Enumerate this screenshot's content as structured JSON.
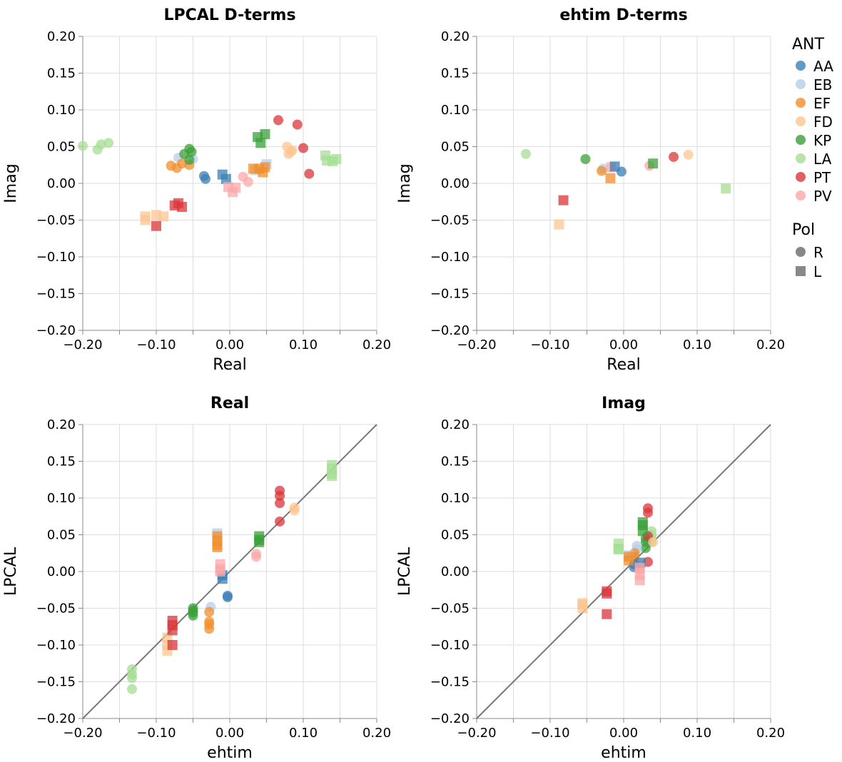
{
  "colors": {
    "AA": "#3b7fb6",
    "EB": "#b7cde8",
    "EF": "#f28e2b",
    "FD": "#fdc690",
    "KP": "#3aa03a",
    "LA": "#a6dd93",
    "PT": "#d9363b",
    "PV": "#fba8aa"
  },
  "legend": {
    "ant_title": "ANT",
    "ant_items": [
      "AA",
      "EB",
      "EF",
      "FD",
      "KP",
      "LA",
      "PT",
      "PV"
    ],
    "pol_title": "Pol",
    "pol_items": [
      {
        "label": "R",
        "shape": "circle"
      },
      {
        "label": "L",
        "shape": "square"
      }
    ]
  },
  "chart_data": [
    {
      "type": "scatter",
      "title": "LPCAL D-terms",
      "xlabel": "Real",
      "ylabel": "Imag",
      "xlim": [
        -0.2,
        0.2
      ],
      "ylim": [
        -0.2,
        0.2
      ],
      "xticks": [
        "−0.20",
        "−0.10",
        "0.00",
        "0.10",
        "0.20"
      ],
      "yticks": [
        "0.20",
        "0.15",
        "0.10",
        "0.05",
        "0.00",
        "−0.05",
        "−0.10",
        "−0.15",
        "−0.20"
      ],
      "grid": true,
      "diagonal": false,
      "points": [
        {
          "ant": "LA",
          "pol": "R",
          "x": -0.165,
          "y": 0.055
        },
        {
          "ant": "LA",
          "pol": "R",
          "x": -0.175,
          "y": 0.053
        },
        {
          "ant": "LA",
          "pol": "R",
          "x": -0.18,
          "y": 0.046
        },
        {
          "ant": "LA",
          "pol": "R",
          "x": -0.2,
          "y": 0.051
        },
        {
          "ant": "EB",
          "pol": "R",
          "x": -0.07,
          "y": 0.035
        },
        {
          "ant": "EB",
          "pol": "R",
          "x": -0.05,
          "y": 0.033
        },
        {
          "ant": "EF",
          "pol": "R",
          "x": -0.08,
          "y": 0.024
        },
        {
          "ant": "EF",
          "pol": "R",
          "x": -0.072,
          "y": 0.021
        },
        {
          "ant": "EF",
          "pol": "R",
          "x": -0.065,
          "y": 0.027
        },
        {
          "ant": "EF",
          "pol": "R",
          "x": -0.055,
          "y": 0.025
        },
        {
          "ant": "KP",
          "pol": "R",
          "x": -0.062,
          "y": 0.04
        },
        {
          "ant": "KP",
          "pol": "R",
          "x": -0.055,
          "y": 0.047
        },
        {
          "ant": "KP",
          "pol": "R",
          "x": -0.055,
          "y": 0.032
        },
        {
          "ant": "KP",
          "pol": "R",
          "x": -0.052,
          "y": 0.043
        },
        {
          "ant": "AA",
          "pol": "R",
          "x": -0.035,
          "y": 0.01
        },
        {
          "ant": "AA",
          "pol": "R",
          "x": -0.033,
          "y": 0.006
        },
        {
          "ant": "PV",
          "pol": "R",
          "x": 0.018,
          "y": 0.009
        },
        {
          "ant": "PV",
          "pol": "R",
          "x": 0.025,
          "y": 0.002
        },
        {
          "ant": "PT",
          "pol": "R",
          "x": 0.066,
          "y": 0.086
        },
        {
          "ant": "PT",
          "pol": "R",
          "x": 0.092,
          "y": 0.08
        },
        {
          "ant": "PT",
          "pol": "R",
          "x": 0.1,
          "y": 0.048
        },
        {
          "ant": "PT",
          "pol": "R",
          "x": 0.108,
          "y": 0.013
        },
        {
          "ant": "FD",
          "pol": "R",
          "x": 0.078,
          "y": 0.05
        },
        {
          "ant": "FD",
          "pol": "R",
          "x": 0.08,
          "y": 0.04
        },
        {
          "ant": "FD",
          "pol": "R",
          "x": 0.085,
          "y": 0.045
        },
        {
          "ant": "FD",
          "pol": "R",
          "x": 0.083,
          "y": 0.043
        },
        {
          "ant": "FD",
          "pol": "L",
          "x": -0.115,
          "y": -0.045
        },
        {
          "ant": "FD",
          "pol": "L",
          "x": -0.115,
          "y": -0.05
        },
        {
          "ant": "FD",
          "pol": "L",
          "x": -0.1,
          "y": -0.043
        },
        {
          "ant": "FD",
          "pol": "L",
          "x": -0.09,
          "y": -0.045
        },
        {
          "ant": "PT",
          "pol": "L",
          "x": -0.1,
          "y": -0.058
        },
        {
          "ant": "PT",
          "pol": "L",
          "x": -0.075,
          "y": -0.03
        },
        {
          "ant": "PT",
          "pol": "L",
          "x": -0.07,
          "y": -0.027
        },
        {
          "ant": "PT",
          "pol": "L",
          "x": -0.065,
          "y": -0.032
        },
        {
          "ant": "AA",
          "pol": "L",
          "x": -0.01,
          "y": 0.012
        },
        {
          "ant": "AA",
          "pol": "L",
          "x": -0.005,
          "y": 0.006
        },
        {
          "ant": "PV",
          "pol": "L",
          "x": -0.002,
          "y": -0.005
        },
        {
          "ant": "PV",
          "pol": "L",
          "x": 0.004,
          "y": -0.012
        },
        {
          "ant": "PV",
          "pol": "L",
          "x": 0.008,
          "y": -0.006
        },
        {
          "ant": "EB",
          "pol": "L",
          "x": 0.035,
          "y": 0.018
        },
        {
          "ant": "EB",
          "pol": "L",
          "x": 0.05,
          "y": 0.026
        },
        {
          "ant": "EF",
          "pol": "L",
          "x": 0.032,
          "y": 0.02
        },
        {
          "ant": "EF",
          "pol": "L",
          "x": 0.04,
          "y": 0.02
        },
        {
          "ant": "EF",
          "pol": "L",
          "x": 0.048,
          "y": 0.022
        },
        {
          "ant": "EF",
          "pol": "L",
          "x": 0.045,
          "y": 0.015
        },
        {
          "ant": "KP",
          "pol": "L",
          "x": 0.038,
          "y": 0.063
        },
        {
          "ant": "KP",
          "pol": "L",
          "x": 0.048,
          "y": 0.067
        },
        {
          "ant": "KP",
          "pol": "L",
          "x": 0.042,
          "y": 0.055
        },
        {
          "ant": "LA",
          "pol": "L",
          "x": 0.13,
          "y": 0.038
        },
        {
          "ant": "LA",
          "pol": "L",
          "x": 0.132,
          "y": 0.031
        },
        {
          "ant": "LA",
          "pol": "L",
          "x": 0.14,
          "y": 0.03
        },
        {
          "ant": "LA",
          "pol": "L",
          "x": 0.145,
          "y": 0.033
        }
      ]
    },
    {
      "type": "scatter",
      "title": "ehtim D-terms",
      "xlabel": "Real",
      "ylabel": "Imag",
      "xlim": [
        -0.2,
        0.2
      ],
      "ylim": [
        -0.2,
        0.2
      ],
      "xticks": [
        "−0.20",
        "−0.10",
        "0.00",
        "0.10",
        "0.20"
      ],
      "yticks": [
        "0.20",
        "0.15",
        "0.10",
        "0.05",
        "0.00",
        "−0.05",
        "−0.10",
        "−0.15",
        "−0.20"
      ],
      "grid": true,
      "diagonal": false,
      "points": [
        {
          "ant": "LA",
          "pol": "R",
          "x": -0.133,
          "y": 0.04
        },
        {
          "ant": "KP",
          "pol": "R",
          "x": -0.052,
          "y": 0.033
        },
        {
          "ant": "EB",
          "pol": "R",
          "x": -0.028,
          "y": 0.02
        },
        {
          "ant": "EF",
          "pol": "R",
          "x": -0.03,
          "y": 0.017
        },
        {
          "ant": "AA",
          "pol": "R",
          "x": -0.003,
          "y": 0.016
        },
        {
          "ant": "PV",
          "pol": "R",
          "x": 0.035,
          "y": 0.024
        },
        {
          "ant": "PT",
          "pol": "R",
          "x": 0.068,
          "y": 0.036
        },
        {
          "ant": "FD",
          "pol": "R",
          "x": 0.088,
          "y": 0.039
        },
        {
          "ant": "PV",
          "pol": "L",
          "x": -0.017,
          "y": 0.022
        },
        {
          "ant": "AA",
          "pol": "L",
          "x": -0.012,
          "y": 0.023
        },
        {
          "ant": "EF",
          "pol": "L",
          "x": -0.018,
          "y": 0.007
        },
        {
          "ant": "KP",
          "pol": "L",
          "x": 0.04,
          "y": 0.027
        },
        {
          "ant": "PT",
          "pol": "L",
          "x": -0.082,
          "y": -0.023
        },
        {
          "ant": "FD",
          "pol": "L",
          "x": -0.088,
          "y": -0.056
        },
        {
          "ant": "LA",
          "pol": "L",
          "x": 0.139,
          "y": -0.007
        }
      ]
    },
    {
      "type": "scatter",
      "title": "Real",
      "xlabel": "ehtim",
      "ylabel": "LPCAL",
      "xlim": [
        -0.2,
        0.2
      ],
      "ylim": [
        -0.2,
        0.2
      ],
      "xticks": [
        "−0.20",
        "−0.10",
        "0.00",
        "0.10",
        "0.20"
      ],
      "yticks": [
        "0.20",
        "0.15",
        "0.10",
        "0.05",
        "0.00",
        "−0.05",
        "−0.10",
        "−0.15",
        "−0.20"
      ],
      "grid": true,
      "diagonal": true,
      "points": [
        {
          "ant": "LA",
          "pol": "R",
          "x": -0.133,
          "y": -0.133
        },
        {
          "ant": "LA",
          "pol": "R",
          "x": -0.133,
          "y": -0.14
        },
        {
          "ant": "LA",
          "pol": "R",
          "x": -0.133,
          "y": -0.145
        },
        {
          "ant": "LA",
          "pol": "R",
          "x": -0.133,
          "y": -0.16
        },
        {
          "ant": "KP",
          "pol": "R",
          "x": -0.05,
          "y": -0.05
        },
        {
          "ant": "KP",
          "pol": "R",
          "x": -0.05,
          "y": -0.053
        },
        {
          "ant": "KP",
          "pol": "R",
          "x": -0.05,
          "y": -0.056
        },
        {
          "ant": "KP",
          "pol": "R",
          "x": -0.05,
          "y": -0.06
        },
        {
          "ant": "EB",
          "pol": "R",
          "x": -0.026,
          "y": -0.048
        },
        {
          "ant": "EF",
          "pol": "R",
          "x": -0.028,
          "y": -0.055
        },
        {
          "ant": "EF",
          "pol": "R",
          "x": -0.028,
          "y": -0.068
        },
        {
          "ant": "EF",
          "pol": "R",
          "x": -0.028,
          "y": -0.072
        },
        {
          "ant": "EF",
          "pol": "R",
          "x": -0.028,
          "y": -0.078
        },
        {
          "ant": "AA",
          "pol": "R",
          "x": -0.003,
          "y": -0.033
        },
        {
          "ant": "AA",
          "pol": "R",
          "x": -0.003,
          "y": -0.035
        },
        {
          "ant": "PV",
          "pol": "R",
          "x": 0.036,
          "y": 0.02
        },
        {
          "ant": "PV",
          "pol": "R",
          "x": 0.036,
          "y": 0.024
        },
        {
          "ant": "PT",
          "pol": "R",
          "x": 0.068,
          "y": 0.11
        },
        {
          "ant": "PT",
          "pol": "R",
          "x": 0.068,
          "y": 0.103
        },
        {
          "ant": "PT",
          "pol": "R",
          "x": 0.068,
          "y": 0.093
        },
        {
          "ant": "PT",
          "pol": "R",
          "x": 0.068,
          "y": 0.068
        },
        {
          "ant": "FD",
          "pol": "R",
          "x": 0.088,
          "y": 0.083
        },
        {
          "ant": "FD",
          "pol": "R",
          "x": 0.088,
          "y": 0.087
        },
        {
          "ant": "FD",
          "pol": "L",
          "x": -0.085,
          "y": -0.09
        },
        {
          "ant": "FD",
          "pol": "L",
          "x": -0.085,
          "y": -0.1
        },
        {
          "ant": "FD",
          "pol": "L",
          "x": -0.085,
          "y": -0.108
        },
        {
          "ant": "PT",
          "pol": "L",
          "x": -0.078,
          "y": -0.067
        },
        {
          "ant": "PT",
          "pol": "L",
          "x": -0.078,
          "y": -0.073
        },
        {
          "ant": "PT",
          "pol": "L",
          "x": -0.078,
          "y": -0.08
        },
        {
          "ant": "PT",
          "pol": "L",
          "x": -0.078,
          "y": -0.1
        },
        {
          "ant": "AA",
          "pol": "L",
          "x": -0.01,
          "y": -0.005
        },
        {
          "ant": "AA",
          "pol": "L",
          "x": -0.01,
          "y": -0.01
        },
        {
          "ant": "PV",
          "pol": "L",
          "x": -0.013,
          "y": 0.01
        },
        {
          "ant": "PV",
          "pol": "L",
          "x": -0.013,
          "y": 0.003
        },
        {
          "ant": "PV",
          "pol": "L",
          "x": -0.013,
          "y": 0.0
        },
        {
          "ant": "EB",
          "pol": "L",
          "x": -0.017,
          "y": 0.052
        },
        {
          "ant": "EF",
          "pol": "L",
          "x": -0.017,
          "y": 0.048
        },
        {
          "ant": "EF",
          "pol": "L",
          "x": -0.017,
          "y": 0.042
        },
        {
          "ant": "EF",
          "pol": "L",
          "x": -0.017,
          "y": 0.036
        },
        {
          "ant": "EF",
          "pol": "L",
          "x": -0.017,
          "y": 0.033
        },
        {
          "ant": "KP",
          "pol": "L",
          "x": 0.04,
          "y": 0.048
        },
        {
          "ant": "KP",
          "pol": "L",
          "x": 0.04,
          "y": 0.043
        },
        {
          "ant": "KP",
          "pol": "L",
          "x": 0.04,
          "y": 0.04
        },
        {
          "ant": "LA",
          "pol": "L",
          "x": 0.139,
          "y": 0.145
        },
        {
          "ant": "LA",
          "pol": "L",
          "x": 0.139,
          "y": 0.14
        },
        {
          "ant": "LA",
          "pol": "L",
          "x": 0.139,
          "y": 0.133
        },
        {
          "ant": "LA",
          "pol": "L",
          "x": 0.139,
          "y": 0.13
        }
      ]
    },
    {
      "type": "scatter",
      "title": "Imag",
      "xlabel": "ehtim",
      "ylabel": "LPCAL",
      "xlim": [
        -0.2,
        0.2
      ],
      "ylim": [
        -0.2,
        0.2
      ],
      "xticks": [
        "−0.20",
        "−0.10",
        "0.00",
        "0.10",
        "0.20"
      ],
      "yticks": [
        "0.20",
        "0.15",
        "0.10",
        "0.05",
        "0.00",
        "−0.05",
        "−0.10",
        "−0.15",
        "−0.20"
      ],
      "grid": true,
      "diagonal": true,
      "points": [
        {
          "ant": "LA",
          "pol": "R",
          "x": 0.038,
          "y": 0.055
        },
        {
          "ant": "LA",
          "pol": "R",
          "x": 0.038,
          "y": 0.05
        },
        {
          "ant": "LA",
          "pol": "R",
          "x": 0.038,
          "y": 0.045
        },
        {
          "ant": "LA",
          "pol": "R",
          "x": 0.038,
          "y": 0.04
        },
        {
          "ant": "KP",
          "pol": "R",
          "x": 0.03,
          "y": 0.04
        },
        {
          "ant": "KP",
          "pol": "R",
          "x": 0.03,
          "y": 0.045
        },
        {
          "ant": "KP",
          "pol": "R",
          "x": 0.03,
          "y": 0.032
        },
        {
          "ant": "EB",
          "pol": "R",
          "x": 0.018,
          "y": 0.035
        },
        {
          "ant": "EB",
          "pol": "R",
          "x": 0.018,
          "y": 0.03
        },
        {
          "ant": "EF",
          "pol": "R",
          "x": 0.015,
          "y": 0.025
        },
        {
          "ant": "EF",
          "pol": "R",
          "x": 0.015,
          "y": 0.02
        },
        {
          "ant": "EF",
          "pol": "R",
          "x": 0.012,
          "y": 0.022
        },
        {
          "ant": "AA",
          "pol": "R",
          "x": 0.014,
          "y": 0.01
        },
        {
          "ant": "AA",
          "pol": "R",
          "x": 0.014,
          "y": 0.006
        },
        {
          "ant": "PV",
          "pol": "R",
          "x": 0.022,
          "y": 0.008
        },
        {
          "ant": "PV",
          "pol": "R",
          "x": 0.022,
          "y": 0.002
        },
        {
          "ant": "PT",
          "pol": "R",
          "x": 0.033,
          "y": 0.086
        },
        {
          "ant": "PT",
          "pol": "R",
          "x": 0.033,
          "y": 0.08
        },
        {
          "ant": "PT",
          "pol": "R",
          "x": 0.033,
          "y": 0.048
        },
        {
          "ant": "PT",
          "pol": "R",
          "x": 0.033,
          "y": 0.013
        },
        {
          "ant": "FD",
          "pol": "R",
          "x": 0.04,
          "y": 0.04
        },
        {
          "ant": "FD",
          "pol": "L",
          "x": -0.056,
          "y": -0.045
        },
        {
          "ant": "FD",
          "pol": "L",
          "x": -0.056,
          "y": -0.05
        },
        {
          "ant": "FD",
          "pol": "L",
          "x": -0.056,
          "y": -0.043
        },
        {
          "ant": "PT",
          "pol": "L",
          "x": -0.023,
          "y": -0.027
        },
        {
          "ant": "PT",
          "pol": "L",
          "x": -0.023,
          "y": -0.03
        },
        {
          "ant": "PT",
          "pol": "L",
          "x": -0.023,
          "y": -0.058
        },
        {
          "ant": "AA",
          "pol": "L",
          "x": 0.023,
          "y": 0.012
        },
        {
          "ant": "PV",
          "pol": "L",
          "x": 0.022,
          "y": -0.005
        },
        {
          "ant": "PV",
          "pol": "L",
          "x": 0.022,
          "y": -0.012
        },
        {
          "ant": "PV",
          "pol": "L",
          "x": 0.022,
          "y": 0.005
        },
        {
          "ant": "EB",
          "pol": "L",
          "x": 0.007,
          "y": 0.022
        },
        {
          "ant": "EF",
          "pol": "L",
          "x": 0.007,
          "y": 0.02
        },
        {
          "ant": "EF",
          "pol": "L",
          "x": 0.007,
          "y": 0.015
        },
        {
          "ant": "KP",
          "pol": "L",
          "x": 0.026,
          "y": 0.067
        },
        {
          "ant": "KP",
          "pol": "L",
          "x": 0.026,
          "y": 0.063
        },
        {
          "ant": "KP",
          "pol": "L",
          "x": 0.026,
          "y": 0.055
        },
        {
          "ant": "LA",
          "pol": "L",
          "x": -0.007,
          "y": 0.038
        },
        {
          "ant": "LA",
          "pol": "L",
          "x": -0.007,
          "y": 0.031
        },
        {
          "ant": "LA",
          "pol": "L",
          "x": -0.007,
          "y": 0.03
        }
      ]
    }
  ]
}
